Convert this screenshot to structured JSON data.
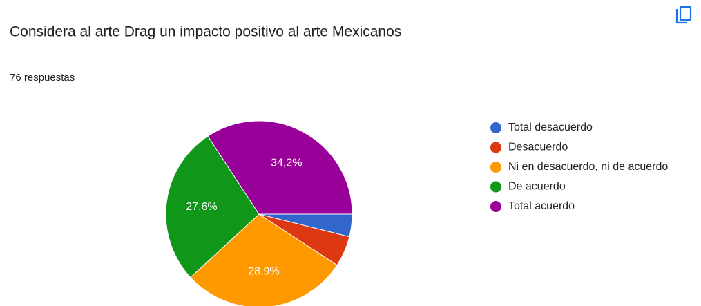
{
  "chart_data": {
    "type": "pie",
    "title": "Considera al arte Drag un impacto positivo al arte Mexicanos",
    "subtitle": "76 respuestas",
    "categories": [
      "Total desacuerdo",
      "Desacuerdo",
      "Ni en desacuerdo, ni de acuerdo",
      "De acuerdo",
      "Total acuerdo"
    ],
    "values": [
      3.9,
      5.3,
      28.9,
      27.6,
      34.2
    ],
    "value_labels": [
      null,
      null,
      "28,9%",
      "27,6%",
      "34,2%"
    ],
    "colors": [
      "#3366cc",
      "#dc3912",
      "#ff9900",
      "#109618",
      "#990099"
    ],
    "legend": "right"
  }
}
